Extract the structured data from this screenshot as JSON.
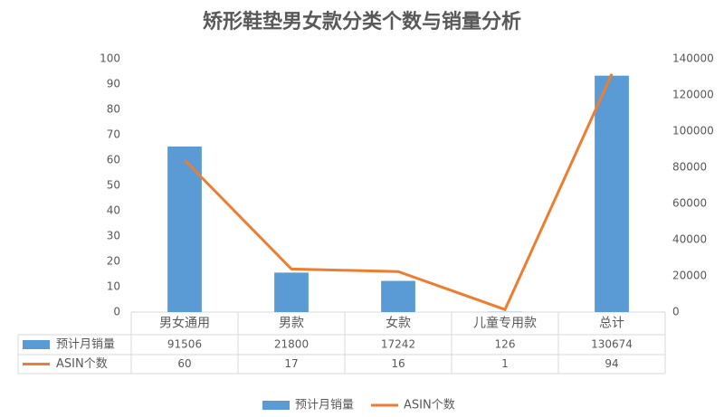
{
  "chart_data": {
    "type": "bar",
    "title": "矫形鞋垫男女款分类个数与销量分析",
    "categories": [
      "男女通用",
      "男款",
      "女款",
      "儿童专用款",
      "总计"
    ],
    "series": [
      {
        "name": "预计月销量",
        "type": "bar",
        "axis": "y2",
        "color": "#5b9bd5",
        "values": [
          91506,
          21800,
          17242,
          126,
          130674
        ]
      },
      {
        "name": "ASIN个数",
        "type": "line",
        "axis": "y",
        "color": "#ed7d31",
        "values": [
          60,
          17,
          16,
          1,
          94
        ]
      }
    ],
    "ylim": [
      0,
      100
    ],
    "yticks": [
      0,
      10,
      20,
      30,
      40,
      50,
      60,
      70,
      80,
      90,
      100
    ],
    "y2lim": [
      0,
      140000
    ],
    "y2ticks": [
      0,
      20000,
      40000,
      60000,
      80000,
      100000,
      120000,
      140000
    ],
    "grid": false,
    "data_table": true,
    "legend": "bottom"
  }
}
